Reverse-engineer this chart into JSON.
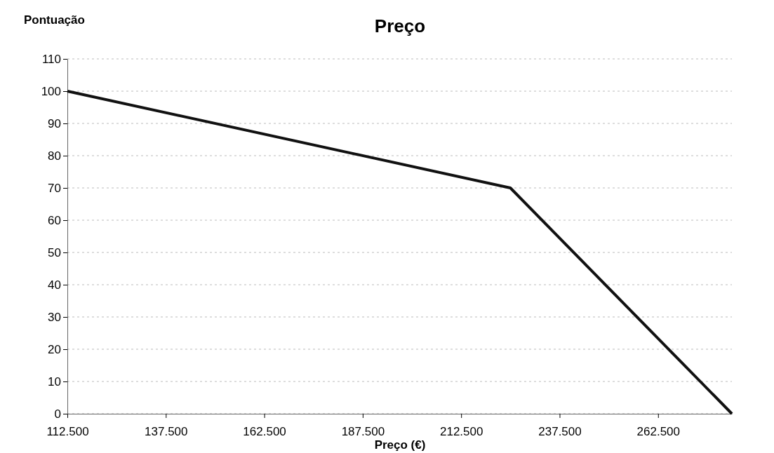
{
  "chart_data": {
    "type": "line",
    "title": "Preço",
    "xlabel": "Preço (€)",
    "ylabel": "Pontuação",
    "x": [
      112500,
      225000,
      281250
    ],
    "series": [
      {
        "color": "#111111",
        "values": [
          100,
          70,
          0
        ]
      }
    ],
    "xlim": [
      112500,
      281250
    ],
    "xticks": [
      {
        "value": 112500,
        "label": "112.500"
      },
      {
        "value": 137500,
        "label": "137.500"
      },
      {
        "value": 162500,
        "label": "162.500"
      },
      {
        "value": 187500,
        "label": "187.500"
      },
      {
        "value": 212500,
        "label": "212.500"
      },
      {
        "value": 237500,
        "label": "237.500"
      },
      {
        "value": 262500,
        "label": "262.500"
      }
    ],
    "ylim": [
      0,
      110
    ],
    "yticks": [
      0,
      10,
      20,
      30,
      40,
      50,
      60,
      70,
      80,
      90,
      100,
      110
    ],
    "grid": "y",
    "marker": "none",
    "line_style": "solid"
  }
}
